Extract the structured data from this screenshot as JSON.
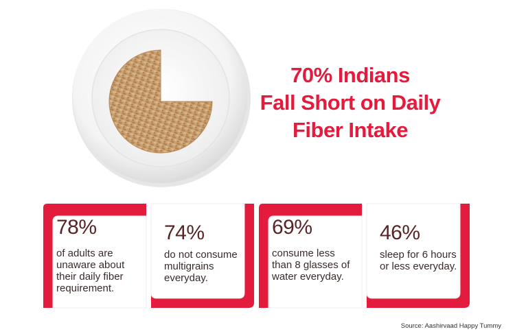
{
  "headline": {
    "line1": "70% Indians",
    "line2": "Fall Short on Daily",
    "line3": "Fiber Intake"
  },
  "stats": [
    {
      "percent": "78%",
      "lines": [
        "of adults are",
        "unaware about",
        "their daily fiber",
        "requirement."
      ]
    },
    {
      "percent": "74%",
      "lines": [
        "do not consume",
        "multigrains",
        "everyday."
      ]
    },
    {
      "percent": "69%",
      "lines": [
        "consume less",
        "than 8 glasses of",
        "water everyday."
      ]
    },
    {
      "percent": "46%",
      "lines": [
        "sleep for 6 hours",
        "or less everyday."
      ]
    }
  ],
  "source": "Source: Aashirvaad Happy Tummy",
  "colors": {
    "accent_red": "#e31b3d",
    "percent_brown": "#5a2426",
    "grain": "#c49a6c"
  }
}
